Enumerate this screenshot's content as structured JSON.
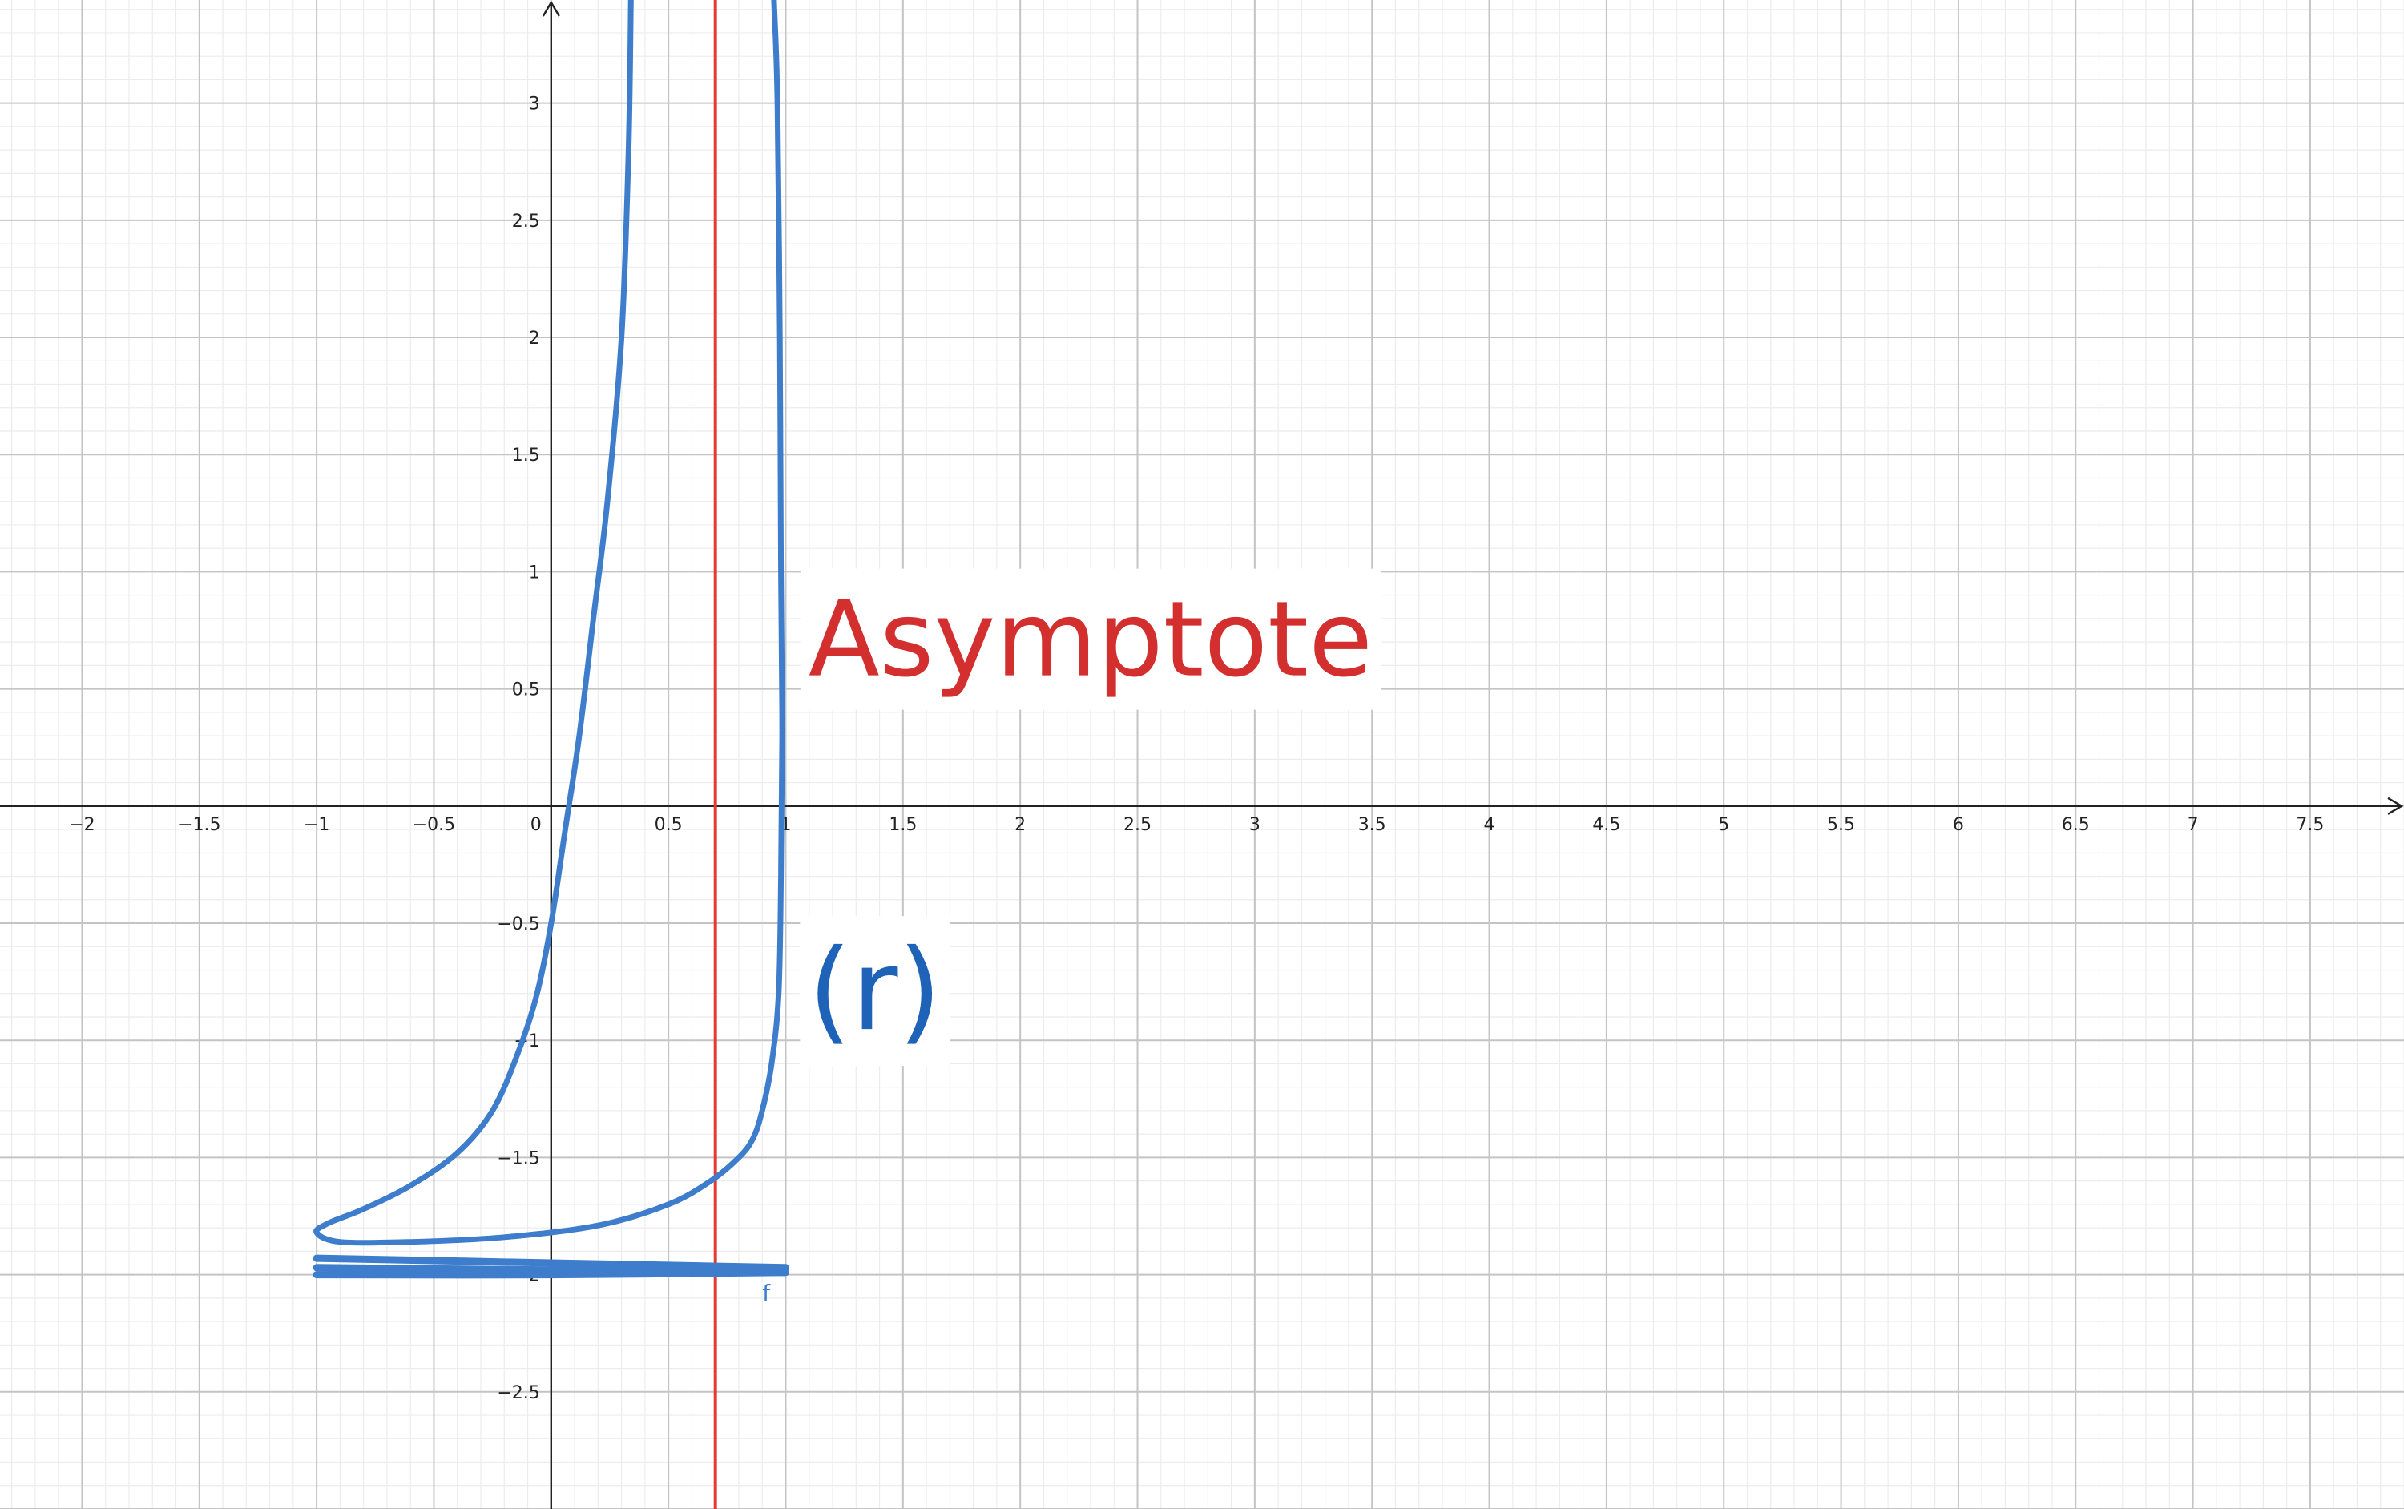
{
  "chart_data": {
    "type": "line",
    "title": "",
    "xlabel": "",
    "ylabel": "",
    "xlim": [
      -2.35,
      7.9
    ],
    "ylim": [
      -3.0,
      3.44
    ],
    "grid": true,
    "x_tick_labels": [
      "−2",
      "−1.5",
      "−1",
      "−0.5",
      "0",
      "0.5",
      "1",
      "1.5",
      "2",
      "2.5",
      "3",
      "3.5",
      "4",
      "4.5",
      "5",
      "5.5",
      "6",
      "6.5",
      "7",
      "7.5"
    ],
    "x_tick_values": [
      -2,
      -1.5,
      -1,
      -0.5,
      0,
      0.5,
      1,
      1.5,
      2,
      2.5,
      3,
      3.5,
      4,
      4.5,
      5,
      5.5,
      6,
      6.5,
      7,
      7.5
    ],
    "y_tick_labels": [
      "−2.5",
      "−2",
      "−1.5",
      "−1",
      "−0.5",
      "0.5",
      "1",
      "1.5",
      "2",
      "2.5",
      "3"
    ],
    "y_tick_values": [
      -2.5,
      -2,
      -1.5,
      -1,
      -0.5,
      0.5,
      1,
      1.5,
      2,
      2.5,
      3
    ],
    "curve": {
      "name": "f",
      "label": "f",
      "label_at": [
        0.9,
        -2.07
      ],
      "color": "#3d7dcc",
      "points": [
        [
          0.34,
          3.44
        ],
        [
          0.33,
          2.8
        ],
        [
          0.3,
          2.0
        ],
        [
          0.24,
          1.3
        ],
        [
          0.18,
          0.8
        ],
        [
          0.12,
          0.3
        ],
        [
          0.06,
          -0.1
        ],
        [
          0.0,
          -0.5
        ],
        [
          -0.06,
          -0.8
        ],
        [
          -0.14,
          -1.05
        ],
        [
          -0.25,
          -1.3
        ],
        [
          -0.4,
          -1.48
        ],
        [
          -0.6,
          -1.62
        ],
        [
          -0.8,
          -1.72
        ],
        [
          -0.95,
          -1.78
        ],
        [
          -1.0,
          -1.82
        ],
        [
          -0.9,
          -1.86
        ],
        [
          -0.6,
          -1.86
        ],
        [
          -0.2,
          -1.84
        ],
        [
          0.2,
          -1.79
        ],
        [
          0.5,
          -1.7
        ],
        [
          0.68,
          -1.6
        ],
        [
          0.8,
          -1.5
        ],
        [
          0.86,
          -1.42
        ],
        [
          0.9,
          -1.3
        ],
        [
          0.94,
          -1.1
        ],
        [
          0.97,
          -0.8
        ],
        [
          0.98,
          -0.3
        ],
        [
          0.985,
          0.3
        ],
        [
          0.98,
          1.0
        ],
        [
          0.975,
          2.0
        ],
        [
          0.965,
          3.0
        ],
        [
          0.95,
          3.44
        ]
      ],
      "bands": [
        [
          [
            -1.0,
            -1.93
          ],
          [
            0.0,
            -1.95
          ],
          [
            1.0,
            -1.97
          ]
        ],
        [
          [
            -1.0,
            -1.97
          ],
          [
            0.0,
            -1.98
          ],
          [
            1.0,
            -1.99
          ]
        ],
        [
          [
            -1.0,
            -2.0
          ],
          [
            0.0,
            -2.0
          ],
          [
            1.0,
            -1.99
          ]
        ]
      ]
    },
    "asymptote": {
      "x": 0.7,
      "color": "#e53935"
    },
    "annotations": [
      {
        "text": "Asymptote",
        "x": 2.3,
        "y": 0.68,
        "color": "#d32f2f"
      },
      {
        "text": "(r)",
        "x": 1.38,
        "y": -0.82,
        "color": "#1e63b8"
      }
    ]
  }
}
